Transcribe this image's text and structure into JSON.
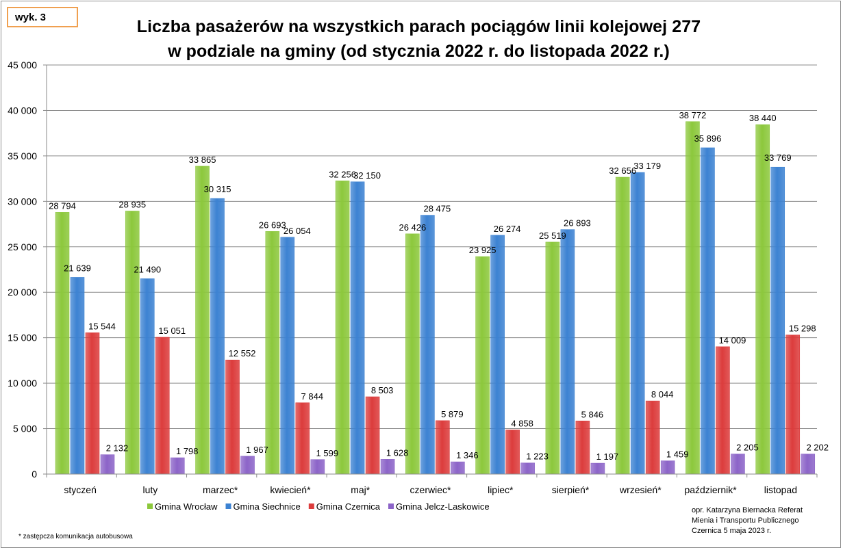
{
  "badge": "wyk. 3",
  "title_line1": "Liczba pasażerów na wszystkich parach pociągów linii kolejowej 277",
  "title_line2": "w podziale na gminy (od stycznia 2022 r. do listopada 2022 r.)",
  "footnote": "* zastępcza komunikacja autobusowa",
  "credit": [
    "opr. Katarzyna Biernacka Referat",
    "Mienia i Transportu Publicznego",
    "Czernica 5 maja 2023 r."
  ],
  "chart_data": {
    "type": "bar",
    "title": "Liczba pasażerów na wszystkich parach pociągów linii kolejowej 277 w podziale na gminy (od stycznia 2022 r. do listopada 2022 r.)",
    "xlabel": "",
    "ylabel": "",
    "ylim": [
      0,
      45000
    ],
    "yticks": [
      0,
      5000,
      10000,
      15000,
      20000,
      25000,
      30000,
      35000,
      40000,
      45000
    ],
    "ytick_labels": [
      "0",
      "5 000",
      "10 000",
      "15 000",
      "20 000",
      "25 000",
      "30 000",
      "35 000",
      "40 000",
      "45 000"
    ],
    "grid": true,
    "legend_position": "bottom",
    "categories": [
      "styczeń",
      "luty",
      "marzec*",
      "kwiecień*",
      "maj*",
      "czerwiec*",
      "lipiec*",
      "sierpień*",
      "wrzesień*",
      "październik*",
      "listopad"
    ],
    "series": [
      {
        "name": "Gmina Wrocław",
        "color": "#8cc83c",
        "values": [
          28794,
          28935,
          33865,
          26693,
          32256,
          26426,
          23925,
          25519,
          32656,
          38772,
          38440
        ],
        "labels": [
          "28 794",
          "28 935",
          "33 865",
          "26 693",
          "32 256",
          "26 426",
          "23 925",
          "25 519",
          "32 656",
          "38 772",
          "38 440"
        ]
      },
      {
        "name": "Gmina Siechnice",
        "color": "#3c82d2",
        "values": [
          21639,
          21490,
          30315,
          26054,
          32150,
          28475,
          26274,
          26893,
          33179,
          35896,
          33769
        ],
        "labels": [
          "21 639",
          "21 490",
          "30 315",
          "26 054",
          "32 150",
          "28 475",
          "26 274",
          "26 893",
          "33 179",
          "35 896",
          "33 769"
        ]
      },
      {
        "name": "Gmina Czernica",
        "color": "#dc3c3c",
        "values": [
          15544,
          15051,
          12552,
          7844,
          8503,
          5879,
          4858,
          5846,
          8044,
          14009,
          15298
        ],
        "labels": [
          "15 544",
          "15 051",
          "12 552",
          "7 844",
          "8 503",
          "5 879",
          "4 858",
          "5 846",
          "8 044",
          "14 009",
          "15 298"
        ]
      },
      {
        "name": "Gmina Jelcz-Laskowice",
        "color": "#8c64c8",
        "values": [
          2132,
          1798,
          1967,
          1599,
          1628,
          1346,
          1223,
          1197,
          1459,
          2205,
          2202
        ],
        "labels": [
          "2 132",
          "1 798",
          "1 967",
          "1 599",
          "1 628",
          "1 346",
          "1 223",
          "1 197",
          "1 459",
          "2 205",
          "2 202"
        ]
      }
    ]
  }
}
